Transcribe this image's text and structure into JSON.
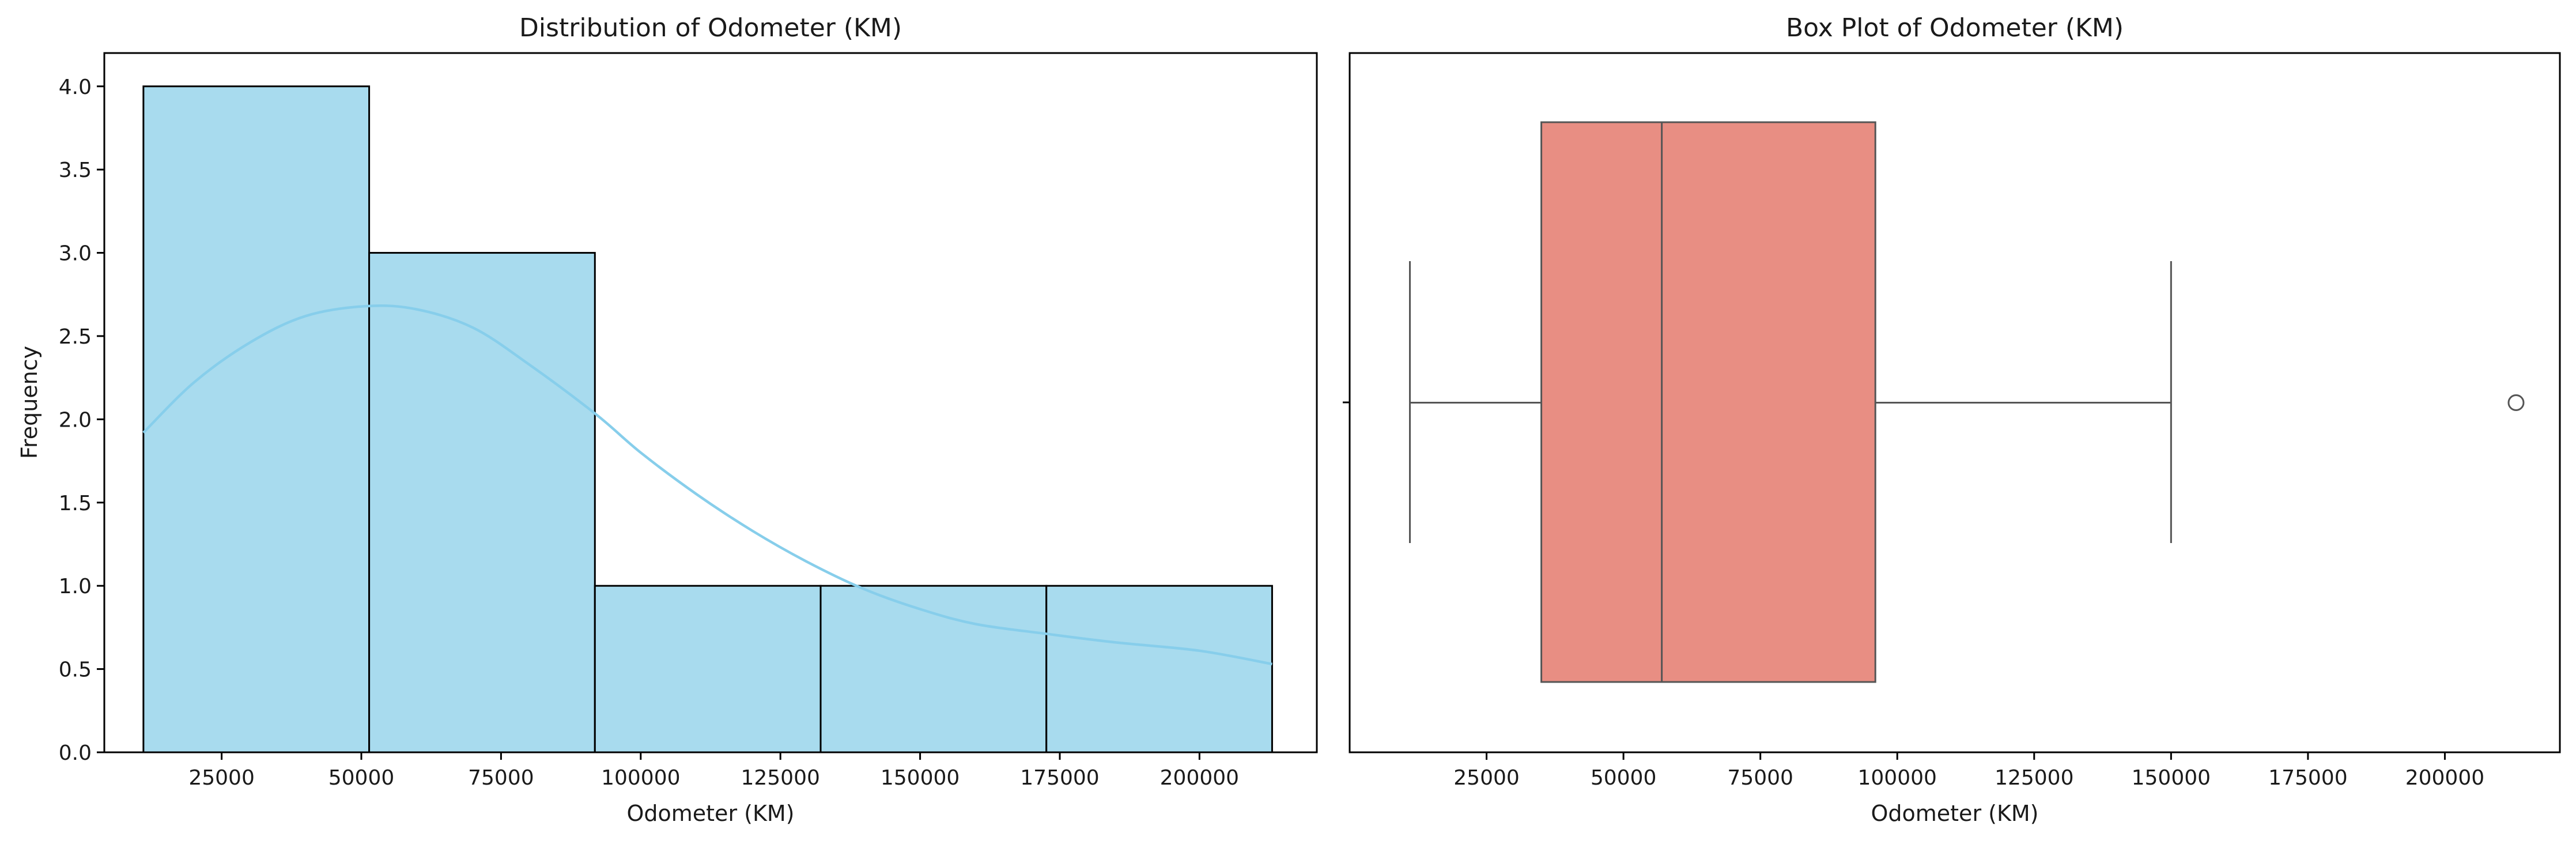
{
  "chart_data": [
    {
      "type": "histogram",
      "title": "Distribution of Odometer (KM)",
      "xlabel": "Odometer (KM)",
      "ylabel": "Frequency",
      "xlim": [
        4000,
        221000
      ],
      "ylim": [
        0,
        4.2
      ],
      "xticks": [
        25000,
        50000,
        75000,
        100000,
        125000,
        150000,
        175000,
        200000
      ],
      "xtick_labels": [
        "25000",
        "50000",
        "75000",
        "100000",
        "125000",
        "150000",
        "175000",
        "200000"
      ],
      "yticks": [
        0,
        0.5,
        1,
        1.5,
        2,
        2.5,
        3,
        3.5,
        4
      ],
      "ytick_labels": [
        "0.0",
        "0.5",
        "1.0",
        "1.5",
        "2.0",
        "2.5",
        "3.0",
        "3.5",
        "4.0"
      ],
      "bins": [
        {
          "x0": 11000,
          "x1": 51400,
          "count": 4
        },
        {
          "x0": 51400,
          "x1": 91800,
          "count": 3
        },
        {
          "x0": 91800,
          "x1": 132200,
          "count": 1
        },
        {
          "x0": 132200,
          "x1": 172600,
          "count": 1
        },
        {
          "x0": 172600,
          "x1": 213000,
          "count": 1
        }
      ],
      "kde": {
        "x": [
          11000,
          20000,
          30000,
          40000,
          51000,
          60000,
          70000,
          80000,
          92000,
          100000,
          110000,
          120000,
          130000,
          140000,
          150000,
          160000,
          173000,
          185000,
          200000,
          213000
        ],
        "y": [
          1.92,
          2.22,
          2.46,
          2.62,
          2.68,
          2.66,
          2.55,
          2.33,
          2.03,
          1.8,
          1.55,
          1.33,
          1.14,
          0.98,
          0.86,
          0.77,
          0.71,
          0.66,
          0.61,
          0.53
        ]
      },
      "colors": {
        "bar_fill": "#a8dbee",
        "bar_edge": "#000000",
        "kde": "#87ceeb"
      }
    },
    {
      "type": "box",
      "title": "Box Plot of Odometer (KM)",
      "xlabel": "Odometer (KM)",
      "xlim": [
        0,
        221000
      ],
      "xticks": [
        25000,
        50000,
        75000,
        100000,
        125000,
        150000,
        175000,
        200000
      ],
      "xtick_labels": [
        "25000",
        "50000",
        "75000",
        "100000",
        "125000",
        "150000",
        "175000",
        "200000"
      ],
      "whisker_low": 11000,
      "q1": 35000,
      "median": 57000,
      "q3": 96000,
      "whisker_high": 150000,
      "outliers": [
        213000
      ],
      "colors": {
        "box_fill": "#e88e83",
        "line": "#555555"
      }
    }
  ]
}
